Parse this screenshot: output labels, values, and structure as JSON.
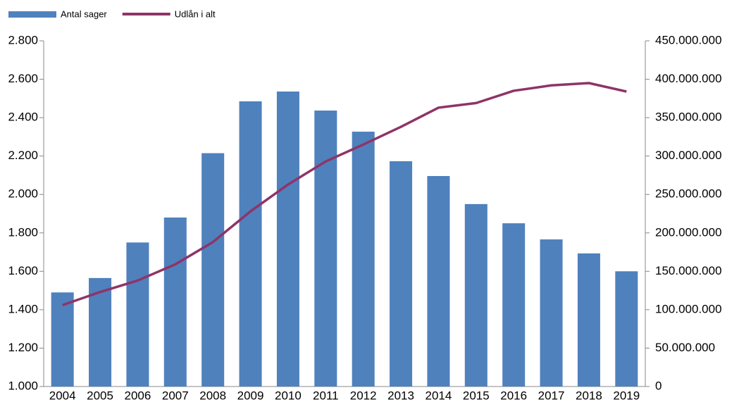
{
  "chart_data": {
    "type": "bar-line",
    "categories": [
      "2004",
      "2005",
      "2006",
      "2007",
      "2008",
      "2009",
      "2010",
      "2011",
      "2012",
      "2013",
      "2014",
      "2015",
      "2016",
      "2017",
      "2018",
      "2019"
    ],
    "series": [
      {
        "name": "Antal sager",
        "type": "bar",
        "color": "#4f81bd",
        "values": [
          1490,
          1565,
          1750,
          1880,
          2215,
          2485,
          2536,
          2437,
          2327,
          2173,
          2096,
          1950,
          1850,
          1766,
          1693,
          1600
        ]
      },
      {
        "name": "Udlån i alt",
        "type": "line",
        "axis": "y2",
        "color": "#8e3468",
        "values": [
          106000000,
          123000000,
          138000000,
          159000000,
          188000000,
          228000000,
          263000000,
          293000000,
          315000000,
          338000000,
          363000000,
          369000000,
          385000000,
          392000000,
          395000000,
          384000000
        ]
      }
    ],
    "ylim": [
      1000,
      2800
    ],
    "yticks": [
      {
        "value": 1000,
        "label": "1.000"
      },
      {
        "value": 1200,
        "label": "1.200"
      },
      {
        "value": 1400,
        "label": "1.400"
      },
      {
        "value": 1600,
        "label": "1.600"
      },
      {
        "value": 1800,
        "label": "1.800"
      },
      {
        "value": 2000,
        "label": "2.000"
      },
      {
        "value": 2200,
        "label": "2.200"
      },
      {
        "value": 2400,
        "label": "2.400"
      },
      {
        "value": 2600,
        "label": "2.600"
      },
      {
        "value": 2800,
        "label": "2.800"
      }
    ],
    "y2lim": [
      0,
      450000000
    ],
    "y2ticks": [
      0,
      {
        "value": 50000000,
        "label": "50.000.000"
      },
      {
        "value": 100000000,
        "label": "100.000.000"
      },
      {
        "value": 150000000,
        "label": "150.000.000"
      },
      {
        "value": 200000000,
        "label": "200.000.000"
      },
      {
        "value": 250000000,
        "label": "250.000.000"
      },
      {
        "value": 300000000,
        "label": "300.000.000"
      },
      {
        "value": 350000000,
        "label": "350.000.000"
      },
      {
        "value": 400000000,
        "label": "400.000.000"
      },
      {
        "value": 450000000,
        "label": "450.000.000"
      }
    ],
    "grid": false,
    "legend": "top-left"
  }
}
